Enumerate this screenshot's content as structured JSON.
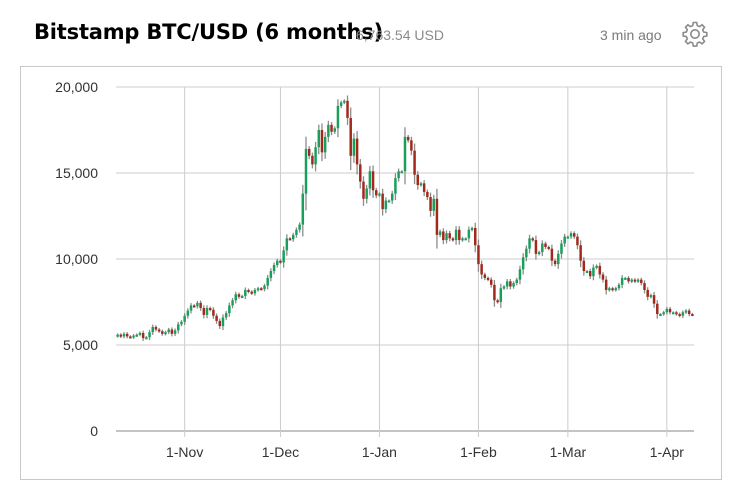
{
  "header": {
    "title": "Bitstamp BTC/USD (6 months)",
    "price": "6,763.54 USD",
    "updated": "3 min ago",
    "settings_icon": "gear-icon"
  },
  "colors": {
    "up": "#1a9e5c",
    "down": "#a0291c",
    "wick": "#8c8c8c",
    "grid": "#cccccc"
  },
  "chart_data": {
    "type": "candlestick",
    "title": "Bitstamp BTC/USD (6 months)",
    "ylim": [
      0,
      20000
    ],
    "y_ticks": [
      0,
      5000,
      10000,
      15000,
      20000
    ],
    "y_tick_labels": [
      "0",
      "5,000",
      "10,000",
      "15,000",
      "20,000"
    ],
    "x_tick_labels": [
      "1-Nov",
      "1-Dec",
      "1-Jan",
      "1-Feb",
      "1-Mar",
      "1-Apr"
    ],
    "x_ticks_day_index": [
      21,
      51,
      82,
      113,
      141,
      172
    ],
    "grid": true,
    "series": [
      {
        "close": [
          5600,
          5500,
          5650,
          5500,
          5450,
          5550,
          5600,
          5700,
          5400,
          5450,
          5750,
          6050,
          5900,
          5800,
          5650,
          5750,
          5900,
          5650,
          5850,
          6200,
          6350,
          6700,
          7000,
          7300,
          7250,
          7450,
          7150,
          6750,
          7150,
          7050,
          6700,
          6400,
          6100,
          6600,
          6850,
          7300,
          7600,
          7950,
          7800,
          7850,
          8200,
          8100,
          8000,
          8200,
          8300,
          8250,
          8450,
          8900,
          9300,
          9650,
          9900,
          9800,
          10500,
          11200,
          11150,
          11400,
          11700,
          12000,
          13800,
          16400,
          16000,
          15500,
          16500,
          17500,
          16200,
          17100,
          17800,
          17400,
          17600,
          18900,
          19100,
          19200,
          18200,
          16000,
          17000,
          15500,
          14500,
          13500,
          14100,
          15100,
          14000,
          13700,
          13800,
          12900,
          13400,
          13400,
          13800,
          14700,
          15100,
          15100,
          17100,
          16900,
          16300,
          14900,
          14300,
          14400,
          13900,
          13600,
          12800,
          13500,
          11400,
          11600,
          11100,
          11500,
          11200,
          11100,
          11700,
          11100,
          11200,
          11200,
          11700,
          11800,
          10800,
          9700,
          9100,
          8900,
          8800,
          8500,
          7600,
          7500,
          8300,
          8400,
          8700,
          8400,
          8600,
          8800,
          9400,
          10100,
          10600,
          11200,
          11100,
          10300,
          10400,
          10900,
          10700,
          10600,
          9900,
          9700,
          10300,
          10900,
          11300,
          11300,
          11500,
          11300,
          10800,
          9900,
          9300,
          9300,
          9000,
          9500,
          9600,
          9100,
          8800,
          8200,
          8300,
          8200,
          8300,
          8500,
          8900,
          8900,
          8700,
          8800,
          8700,
          8800,
          8600,
          8200,
          7800,
          7900,
          7400,
          6800,
          6800,
          6900,
          7100,
          6900,
          6900,
          6800,
          6700,
          6900,
          7000,
          6800,
          6763.54
        ]
      }
    ]
  }
}
